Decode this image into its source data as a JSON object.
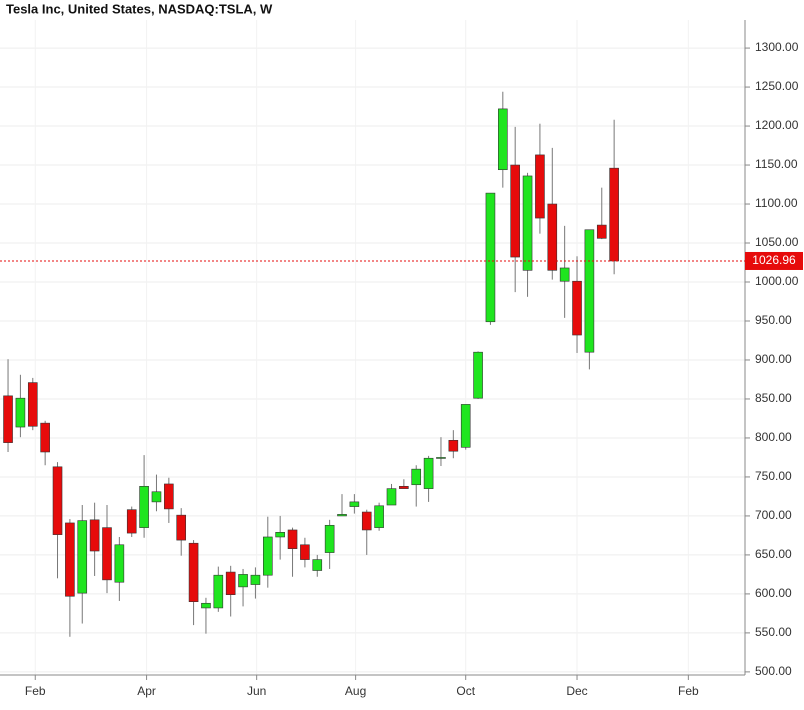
{
  "chart_data": {
    "type": "candlestick",
    "title": "Tesla Inc, United States, NASDAQ:TSLA, W",
    "categories": [
      null,
      null,
      null,
      null,
      null,
      null,
      null,
      null,
      null,
      null,
      null,
      null,
      null,
      null,
      null,
      null,
      null,
      null,
      null,
      null,
      null,
      null,
      null,
      null,
      null,
      null,
      null,
      null,
      null,
      null,
      null,
      null,
      null,
      null,
      null,
      null,
      null,
      null,
      null,
      null,
      null,
      null,
      null,
      null,
      null,
      null,
      null,
      null,
      null,
      null
    ],
    "open": [
      854,
      814,
      871,
      819,
      763,
      691,
      601,
      695,
      685,
      615,
      708,
      685,
      718,
      741,
      701,
      665,
      582,
      582,
      628,
      609,
      612,
      624,
      673,
      682,
      663,
      630,
      653,
      700,
      712,
      705,
      685,
      714,
      738,
      740,
      735,
      774,
      797,
      788,
      851,
      949,
      1144,
      1150,
      1015,
      1163,
      1100,
      1001,
      1001,
      910,
      1073,
      1146
    ],
    "high": [
      901,
      881,
      877,
      822,
      769,
      696,
      714,
      717,
      714,
      673,
      712,
      778,
      753,
      749,
      710,
      669,
      595,
      635,
      636,
      632,
      634,
      699,
      700,
      685,
      672,
      650,
      695,
      728,
      728,
      708,
      717,
      741,
      747,
      765,
      777,
      801,
      810,
      843,
      911,
      1114,
      1244,
      1199,
      1140,
      1203,
      1172,
      1072,
      1033,
      1067,
      1121,
      1208
    ],
    "low": [
      782,
      801,
      810,
      765,
      620,
      545,
      562,
      623,
      601,
      591,
      673,
      672,
      706,
      691,
      649,
      560,
      549,
      577,
      571,
      584,
      594,
      608,
      644,
      622,
      634,
      622,
      632,
      700,
      703,
      650,
      681,
      714,
      735,
      712,
      718,
      764,
      774,
      785,
      850,
      945,
      1121,
      987,
      981,
      1062,
      1003,
      954,
      909,
      888,
      1055,
      1010
    ],
    "close": [
      794,
      851,
      815,
      782,
      676,
      597,
      694,
      655,
      618,
      663,
      678,
      738,
      731,
      709,
      669,
      590,
      588,
      624,
      599,
      625,
      624,
      673,
      679,
      658,
      644,
      644,
      688,
      702,
      718,
      682,
      713,
      735,
      735,
      760,
      774,
      775,
      783,
      843,
      910,
      1114,
      1222,
      1032,
      1136,
      1082,
      1015,
      1018,
      932,
      1067,
      1056,
      1026.96
    ],
    "up_color": "#1fe51f",
    "down_color": "#e60b0b",
    "last_price": 1026.96,
    "last_price_color": "#e60b0b",
    "xlim": [
      -0.65,
      59.58
    ],
    "xticks": [
      {
        "value": 2.2,
        "label": "Feb"
      },
      {
        "value": 11.2,
        "label": "Apr"
      },
      {
        "value": 20.1,
        "label": "Jun"
      },
      {
        "value": 28.1,
        "label": "Aug"
      },
      {
        "value": 37.0,
        "label": "Oct"
      },
      {
        "value": 46.0,
        "label": "Dec"
      },
      {
        "value": 55.0,
        "label": "Feb"
      }
    ],
    "ylim": [
      496,
      1336
    ],
    "yticks": [
      {
        "value": 500,
        "label": "500.00"
      },
      {
        "value": 550,
        "label": "550.00"
      },
      {
        "value": 600,
        "label": "600.00"
      },
      {
        "value": 650,
        "label": "650.00"
      },
      {
        "value": 700,
        "label": "700.00"
      },
      {
        "value": 750,
        "label": "750.00"
      },
      {
        "value": 800,
        "label": "800.00"
      },
      {
        "value": 850,
        "label": "850.00"
      },
      {
        "value": 900,
        "label": "900.00"
      },
      {
        "value": 950,
        "label": "950.00"
      },
      {
        "value": 1000,
        "label": "1000.00"
      },
      {
        "value": 1050,
        "label": "1050.00"
      },
      {
        "value": 1100,
        "label": "1100.00"
      },
      {
        "value": 1150,
        "label": "1150.00"
      },
      {
        "value": 1200,
        "label": "1200.00"
      },
      {
        "value": 1250,
        "label": "1250.00"
      },
      {
        "value": 1300,
        "label": "1300.00"
      }
    ],
    "grid": true
  }
}
